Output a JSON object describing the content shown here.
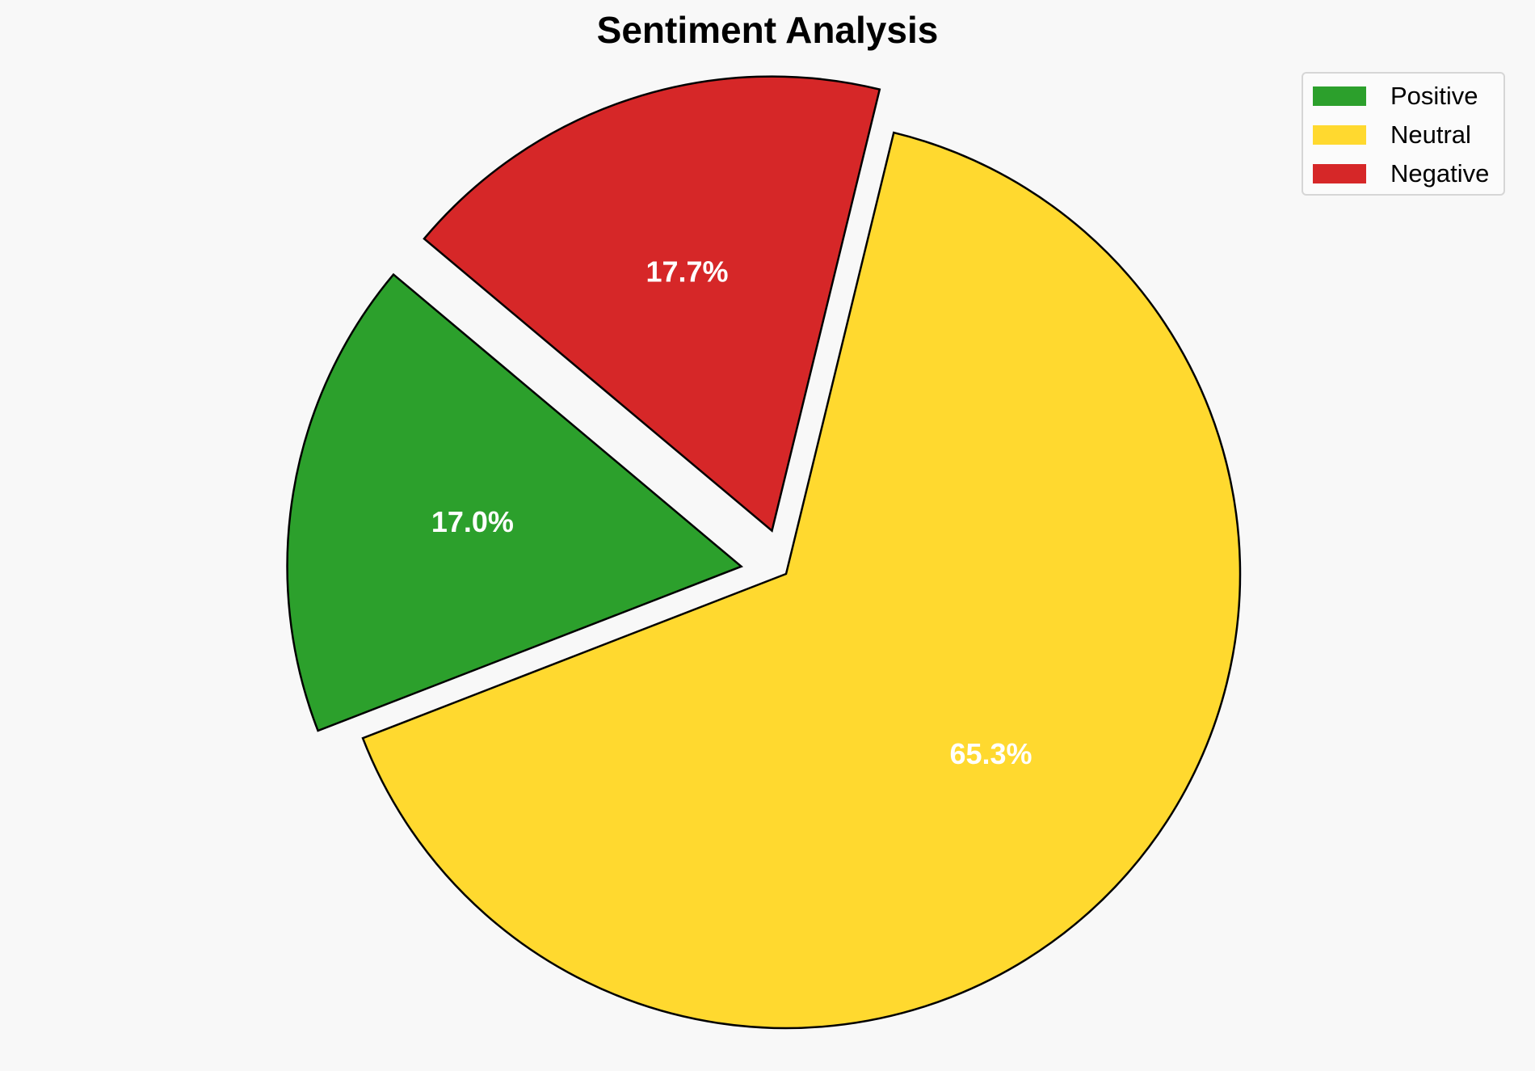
{
  "chart_data": {
    "type": "pie",
    "title": "Sentiment Analysis",
    "slices": [
      {
        "name": "Positive",
        "value": 17.0,
        "label": "17.0%",
        "color": "#2ca02c",
        "exploded": true
      },
      {
        "name": "Neutral",
        "value": 65.3,
        "label": "65.3%",
        "color": "#ffd92f",
        "exploded": false
      },
      {
        "name": "Negative",
        "value": 17.7,
        "label": "17.7%",
        "color": "#d62728",
        "exploded": true
      }
    ],
    "legend_placement": "top-right",
    "label_color": "#ffffff",
    "edge_color": "#000000",
    "background": "#f8f8f8"
  }
}
